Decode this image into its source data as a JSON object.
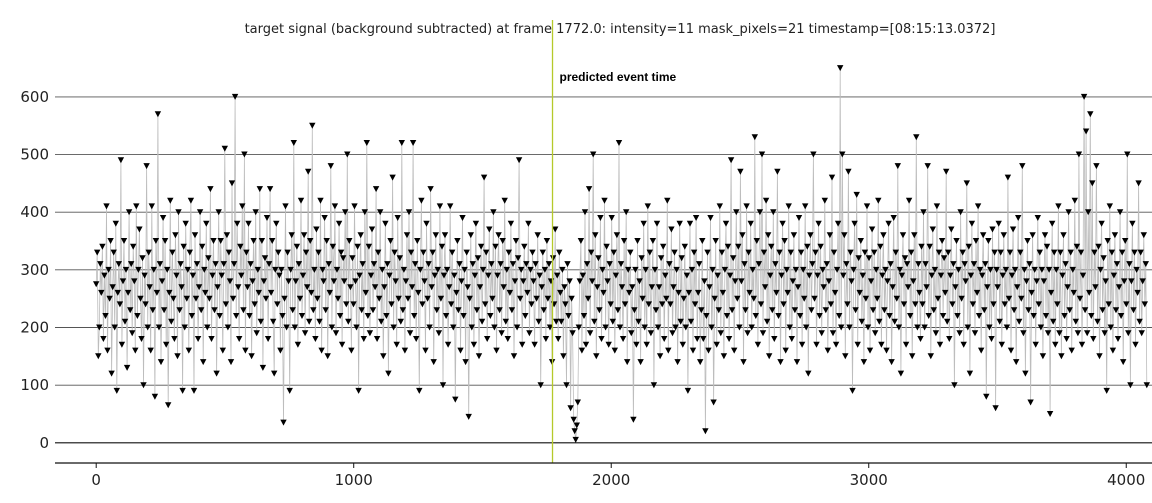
{
  "chart_data": {
    "type": "line",
    "title": "target signal (background subtracted) at frame 1772.0: intensity=11 mask_pixels=21 timestamp=[08:15:13.0372]",
    "xlabel": "",
    "ylabel": "",
    "xlim": [
      -160,
      4100
    ],
    "ylim": [
      -35,
      690
    ],
    "xticks": [
      0,
      1000,
      2000,
      3000,
      4000
    ],
    "yticks": [
      0,
      100,
      200,
      300,
      400,
      500,
      600
    ],
    "grid_y": true,
    "marker": "down-triangle",
    "marker_color": "#000000",
    "line_color": "#bdbdbd",
    "event_line": {
      "x": 1772,
      "color": "#b5c92a",
      "label": "predicted event time"
    },
    "series": [
      {
        "values": [
          275,
          330,
          150,
          200,
          310,
          260,
          340,
          180,
          290,
          220,
          410,
          160,
          300,
          250,
          350,
          120,
          270,
          330,
          200,
          380,
          90,
          260,
          310,
          240,
          490,
          170,
          280,
          350,
          210,
          300,
          130,
          260,
          400,
          230,
          310,
          190,
          340,
          280,
          160,
          410,
          220,
          300,
          370,
          250,
          180,
          320,
          100,
          290,
          240,
          480,
          200,
          330,
          270,
          160,
          410,
          230,
          300,
          80,
          350,
          260,
          570,
          200,
          310,
          140,
          280,
          390,
          230,
          350,
          170,
          300,
          65,
          260,
          420,
          210,
          330,
          250,
          180,
          360,
          290,
          150,
          400,
          230,
          310,
          270,
          90,
          340,
          200,
          380,
          250,
          300,
          160,
          330,
          420,
          220,
          290,
          90,
          360,
          250,
          310,
          180,
          270,
          400,
          230,
          340,
          140,
          300,
          260,
          380,
          200,
          320,
          250,
          440,
          180,
          290,
          350,
          230,
          310,
          120,
          270,
          400,
          220,
          350,
          290,
          160,
          310,
          510,
          240,
          360,
          200,
          330,
          280,
          140,
          450,
          250,
          310,
          600,
          220,
          380,
          270,
          180,
          340,
          290,
          410,
          230,
          500,
          160,
          330,
          270,
          380,
          220,
          310,
          150,
          280,
          350,
          240,
          400,
          190,
          300,
          260,
          440,
          210,
          350,
          130,
          280,
          320,
          250,
          390,
          180,
          310,
          440,
          260,
          350,
          210,
          120,
          300,
          380,
          240,
          330,
          290,
          160,
          300,
          220,
          35,
          250,
          410,
          200,
          330,
          280,
          90,
          300,
          360,
          230,
          520,
          200,
          280,
          340,
          170,
          310,
          250,
          420,
          220,
          290,
          360,
          190,
          330,
          270,
          470,
          210,
          350,
          260,
          550,
          230,
          300,
          180,
          370,
          250,
          330,
          210,
          420,
          160,
          300,
          280,
          390,
          230,
          350,
          150,
          310,
          260,
          480,
          200,
          340,
          280,
          410,
          190,
          300,
          250,
          380,
          220,
          330,
          170,
          320,
          280,
          400,
          240,
          500,
          210,
          350,
          270,
          160,
          320,
          240,
          410,
          280,
          200,
          340,
          90,
          290,
          360,
          230,
          310,
          180,
          400,
          260,
          520,
          220,
          340,
          190,
          290,
          370,
          230,
          310,
          270,
          440,
          180,
          330,
          250,
          400,
          210,
          300,
          150,
          270,
          380,
          220,
          310,
          120,
          290,
          350,
          240,
          460,
          200,
          330,
          280,
          170,
          390,
          250,
          320,
          210,
          520,
          230,
          300,
          160,
          280,
          360,
          250,
          400,
          190,
          330,
          270,
          520,
          220,
          310,
          180,
          350,
          260,
          90,
          300,
          420,
          240,
          330,
          280,
          160,
          380,
          250,
          310,
          200,
          440,
          270,
          330,
          140,
          290,
          360,
          230,
          300,
          190,
          410,
          250,
          340,
          100,
          290,
          360,
          220,
          300,
          170,
          270,
          410,
          240,
          330,
          200,
          290,
          75,
          260,
          350,
          230,
          310,
          160,
          280,
          390,
          220,
          300,
          140,
          330,
          270,
          45,
          250,
          360,
          200,
          310,
          170,
          290,
          380,
          230,
          320,
          150,
          270,
          340,
          210,
          300,
          460,
          240,
          330,
          180,
          290,
          370,
          220,
          310,
          250,
          400,
          200,
          340,
          160,
          290,
          360,
          230,
          310,
          190,
          350,
          270,
          420,
          210,
          300,
          180,
          330,
          260,
          380,
          230,
          310,
          150,
          280,
          350,
          200,
          320,
          490,
          250,
          300,
          170,
          280,
          340,
          220,
          310,
          260,
          380,
          190,
          300,
          240,
          330,
          280,
          170,
          310,
          250,
          360,
          210,
          290,
          100,
          270,
          330,
          230,
          300,
          180,
          350,
          250,
          310,
          200,
          280,
          140,
          320,
          240,
          370,
          210,
          290,
          180,
          330,
          260,
          210,
          300,
          150,
          270,
          240,
          100,
          310,
          220,
          280,
          60,
          250,
          190,
          40,
          20,
          5,
          30,
          70,
          200,
          280,
          350,
          160,
          290,
          220,
          400,
          170,
          310,
          250,
          440,
          190,
          330,
          280,
          500,
          210,
          360,
          150,
          270,
          320,
          230,
          390,
          180,
          300,
          260,
          420,
          200,
          340,
          280,
          170,
          310,
          240,
          390,
          210,
          330,
          160,
          290,
          360,
          230,
          520,
          200,
          310,
          270,
          180,
          350,
          240,
          400,
          140,
          300,
          260,
          330,
          190,
          270,
          40,
          230,
          300,
          170,
          350,
          210,
          280,
          140,
          320,
          250,
          380,
          200,
          300,
          170,
          410,
          240,
          330,
          190,
          270,
          350,
          100,
          300,
          230,
          380,
          200,
          270,
          150,
          320,
          240,
          340,
          180,
          290,
          250,
          420,
          160,
          310,
          240,
          370,
          190,
          270,
          330,
          200,
          300,
          140,
          260,
          380,
          210,
          320,
          170,
          250,
          340,
          200,
          290,
          90,
          260,
          380,
          210,
          300,
          160,
          330,
          240,
          390,
          180,
          260,
          310,
          140,
          230,
          350,
          180,
          280,
          20,
          220,
          330,
          160,
          270,
          390,
          200,
          300,
          70,
          250,
          350,
          170,
          290,
          230,
          410,
          190,
          330,
          260,
          150,
          300,
          380,
          220,
          340,
          180,
          290,
          490,
          230,
          320,
          160,
          280,
          400,
          250,
          340,
          200,
          470,
          280,
          360,
          140,
          310,
          230,
          410,
          190,
          330,
          260,
          380,
          200,
          300,
          250,
          530,
          220,
          350,
          170,
          310,
          400,
          240,
          500,
          190,
          330,
          270,
          420,
          210,
          360,
          150,
          290,
          340,
          230,
          400,
          180,
          310,
          260,
          470,
          220,
          330,
          140,
          290,
          380,
          240,
          350,
          160,
          300,
          260,
          410,
          200,
          330,
          180,
          280,
          360,
          230,
          300,
          140,
          270,
          390,
          220,
          330,
          170,
          300,
          250,
          410,
          200,
          340,
          120,
          290,
          360,
          230,
          310,
          500,
          250,
          330,
          170,
          290,
          380,
          220,
          340,
          190,
          300,
          270,
          420,
          230,
          310,
          160,
          280,
          360,
          240,
          460,
          190,
          330,
          260,
          170,
          300,
          380,
          220,
          650,
          200,
          500,
          290,
          360,
          150,
          310,
          240,
          470,
          200,
          330,
          280,
          90,
          300,
          380,
          230,
          430,
          170,
          320,
          260,
          350,
          210,
          290,
          140,
          330,
          250,
          410,
          200,
          320,
          160,
          280,
          370,
          230,
          330,
          190,
          300,
          250,
          420,
          210,
          340,
          170,
          290,
          360,
          230,
          300,
          160,
          280,
          380,
          220,
          310,
          140,
          270,
          390,
          210,
          330,
          250,
          480,
          200,
          300,
          120,
          290,
          360,
          240,
          320,
          170,
          310,
          270,
          420,
          220,
          330,
          150,
          280,
          360,
          240,
          530,
          200,
          310,
          260,
          180,
          340,
          240,
          400,
          200,
          310,
          270,
          480,
          220,
          340,
          150,
          290,
          370,
          230,
          300,
          190,
          410,
          250,
          330,
          170,
          290,
          350,
          220,
          320,
          260,
          470,
          210,
          330,
          180,
          290,
          370,
          240,
          310,
          100,
          270,
          350,
          220,
          300,
          190,
          400,
          250,
          330,
          170,
          310,
          280,
          450,
          200,
          340,
          120,
          290,
          380,
          240,
          310,
          190,
          350,
          260,
          410,
          220,
          300,
          160,
          290,
          360,
          230,
          310,
          80,
          270,
          350,
          200,
          300,
          180,
          370,
          240,
          330,
          60,
          300,
          270,
          380,
          210,
          330,
          170,
          290,
          360,
          240,
          300,
          200,
          460,
          250,
          330,
          160,
          290,
          370,
          230,
          300,
          140,
          270,
          390,
          210,
          330,
          250,
          480,
          190,
          300,
          120,
          280,
          350,
          230,
          310,
          70,
          260,
          360,
          220,
          300,
          170,
          280,
          390,
          240,
          330,
          200,
          300,
          150,
          280,
          360,
          220,
          340,
          190,
          300,
          50,
          260,
          380,
          210,
          330,
          170,
          300,
          240,
          410,
          190,
          330,
          150,
          290,
          360,
          220,
          310,
          180,
          270,
          400,
          230,
          330,
          160,
          300,
          260,
          420,
          210,
          340,
          190,
          500,
          250,
          330,
          170,
          290,
          600,
          230,
          540,
          190,
          400,
          260,
          570,
          220,
          450,
          180,
          330,
          270,
          480,
          210,
          340,
          150,
          300,
          380,
          230,
          320,
          190,
          280,
          90,
          350,
          240,
          410,
          200,
          330,
          160,
          290,
          360,
          230,
          310,
          180,
          270,
          400,
          220,
          330,
          140,
          280,
          350,
          240,
          500,
          190,
          310,
          100,
          280,
          380,
          230,
          330,
          170,
          300,
          260,
          450,
          210,
          330,
          190,
          280,
          360,
          240,
          310,
          100
        ]
      }
    ]
  }
}
